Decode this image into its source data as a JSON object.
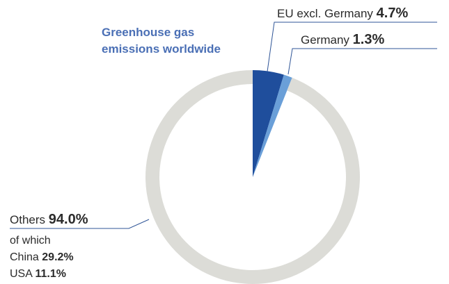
{
  "chart_data": {
    "type": "pie",
    "title": "Greenhouse gas emissions worldwide",
    "slices": [
      {
        "label": "EU excl. Germany",
        "value": 4.7,
        "value_label": "4.7%",
        "color": "#1f4e9c"
      },
      {
        "label": "Germany",
        "value": 1.3,
        "value_label": "1.3%",
        "color": "#6a9fd8"
      },
      {
        "label": "Others",
        "value": 94.0,
        "value_label": "94.0%",
        "color": "#dcdcd7"
      }
    ],
    "annotation": {
      "of_which": "of which",
      "items": [
        {
          "label": "China",
          "value": 29.2,
          "value_label": "29.2%"
        },
        {
          "label": "USA",
          "value": 11.1,
          "value_label": "11.1%"
        }
      ]
    }
  },
  "colors": {
    "title": "#4a6fb5",
    "leader_line": "#2f5597",
    "background": "#ffffff"
  }
}
